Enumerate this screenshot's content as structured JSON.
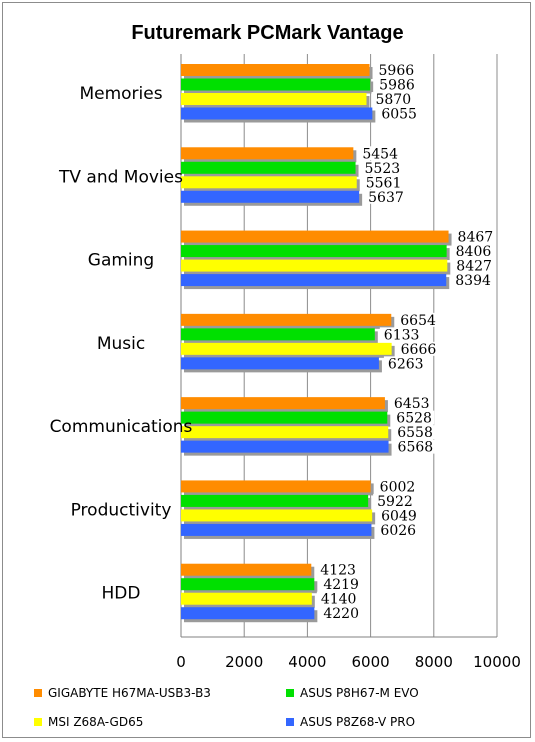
{
  "chart_data": {
    "type": "bar",
    "orientation": "horizontal",
    "title": "Futuremark PCMark Vantage",
    "categories": [
      "Memories",
      "TV and Movies",
      "Gaming",
      "Music",
      "Communications",
      "Productivity",
      "HDD"
    ],
    "series": [
      {
        "name": "GIGABYTE H67MA-USB3-B3",
        "color": "#ff8c00",
        "values": [
          5966,
          5454,
          8467,
          6654,
          6453,
          6002,
          4123
        ]
      },
      {
        "name": "ASUS P8H67-M EVO",
        "color": "#00e000",
        "values": [
          5986,
          5523,
          8406,
          6133,
          6528,
          5922,
          4219
        ]
      },
      {
        "name": "MSI Z68A-GD65",
        "color": "#ffff00",
        "values": [
          5870,
          5561,
          8427,
          6666,
          6558,
          6049,
          4140
        ]
      },
      {
        "name": "ASUS P8Z68-V PRO",
        "color": "#3366ff",
        "values": [
          6055,
          5637,
          8394,
          6263,
          6568,
          6026,
          4220
        ]
      }
    ],
    "xlim": [
      0,
      10000
    ],
    "xticks": [
      "0",
      "2000",
      "4000",
      "6000",
      "8000",
      "10000"
    ],
    "grid": true,
    "legend_position": "bottom"
  }
}
